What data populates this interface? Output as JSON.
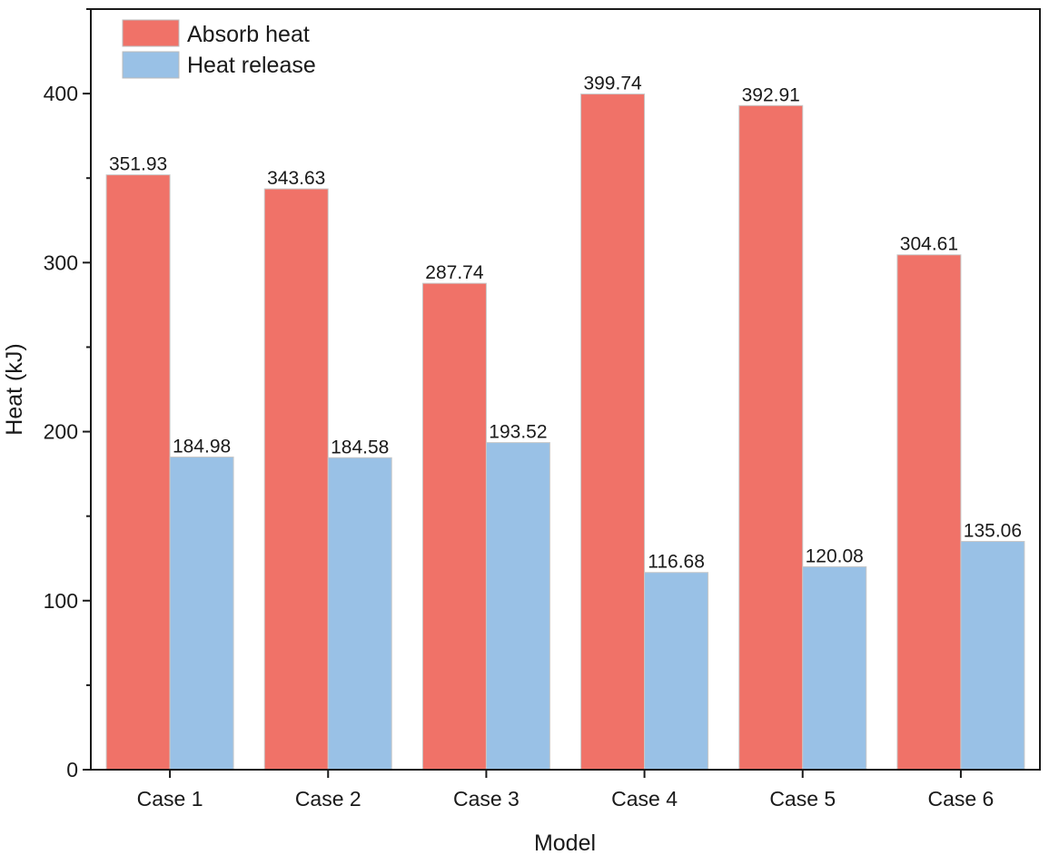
{
  "chart_data": {
    "type": "bar",
    "xlabel": "Model",
    "ylabel": "Heat (kJ)",
    "categories": [
      "Case 1",
      "Case 2",
      "Case 3",
      "Case 4",
      "Case 5",
      "Case 6"
    ],
    "series": [
      {
        "name": "Absorb heat",
        "color": "#f07268",
        "values": [
          351.93,
          343.63,
          287.74,
          399.74,
          392.91,
          304.61
        ],
        "labels": [
          "351.93",
          "343.63",
          "287.74",
          "399.74",
          "392.91",
          "304.61"
        ]
      },
      {
        "name": "Heat release",
        "color": "#99c1e6",
        "values": [
          184.98,
          184.58,
          193.52,
          116.68,
          120.08,
          135.06
        ],
        "labels": [
          "184.98",
          "184.58",
          "193.52",
          "116.68",
          "120.08",
          "135.06"
        ]
      }
    ],
    "ylim": [
      0,
      450
    ],
    "yticks": [
      0,
      100,
      200,
      300,
      400
    ],
    "ytick_labels": [
      "0",
      "100",
      "200",
      "300",
      "400"
    ],
    "legend_position": "top-left",
    "grid": false
  }
}
